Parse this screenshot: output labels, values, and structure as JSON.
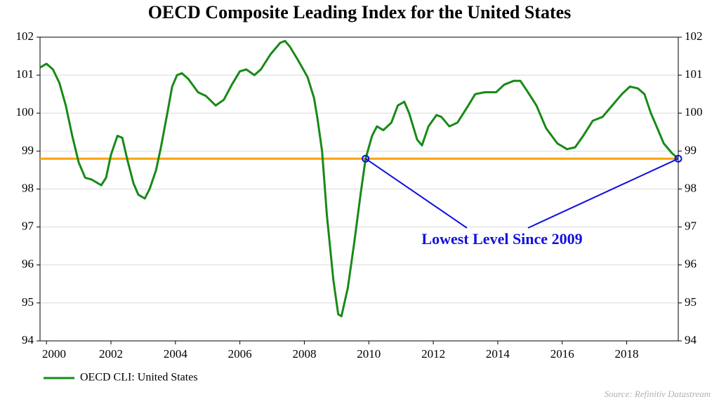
{
  "chart_data": {
    "type": "line",
    "title": "OECD Composite Leading Index for the United States",
    "x": [
      1999.8,
      2000.0,
      2000.2,
      2000.4,
      2000.6,
      2000.8,
      2001.0,
      2001.2,
      2001.4,
      2001.7,
      2001.85,
      2002.0,
      2002.2,
      2002.35,
      2002.5,
      2002.7,
      2002.85,
      2003.05,
      2003.2,
      2003.4,
      2003.55,
      2003.75,
      2003.9,
      2004.05,
      2004.2,
      2004.4,
      2004.7,
      2004.95,
      2005.25,
      2005.5,
      2005.75,
      2006.0,
      2006.2,
      2006.45,
      2006.65,
      2006.95,
      2007.25,
      2007.4,
      2007.55,
      2007.8,
      2008.1,
      2008.3,
      2008.4,
      2008.55,
      2008.7,
      2008.9,
      2009.05,
      2009.15,
      2009.35,
      2009.55,
      2009.75,
      2009.9,
      2010.1,
      2010.25,
      2010.45,
      2010.7,
      2010.9,
      2011.1,
      2011.25,
      2011.5,
      2011.65,
      2011.85,
      2012.1,
      2012.25,
      2012.5,
      2012.75,
      2013.05,
      2013.3,
      2013.6,
      2013.95,
      2014.2,
      2014.5,
      2014.7,
      2014.9,
      2015.2,
      2015.5,
      2015.85,
      2016.15,
      2016.4,
      2016.65,
      2016.95,
      2017.25,
      2017.5,
      2017.85,
      2018.1,
      2018.35,
      2018.55,
      2018.75,
      2018.95,
      2019.15,
      2019.4,
      2019.6
    ],
    "series": [
      {
        "name": "OECD CLI: United States",
        "color": "#178a17",
        "values": [
          101.2,
          101.3,
          101.15,
          100.8,
          100.2,
          99.4,
          98.7,
          98.3,
          98.25,
          98.1,
          98.3,
          98.9,
          99.4,
          99.35,
          98.8,
          98.15,
          97.85,
          97.75,
          98.0,
          98.5,
          99.1,
          100.0,
          100.7,
          101.0,
          101.05,
          100.9,
          100.55,
          100.45,
          100.2,
          100.35,
          100.75,
          101.1,
          101.15,
          101.0,
          101.15,
          101.55,
          101.85,
          101.9,
          101.75,
          101.4,
          100.95,
          100.4,
          99.9,
          99.0,
          97.3,
          95.6,
          94.7,
          94.65,
          95.4,
          96.6,
          97.9,
          98.8,
          99.4,
          99.65,
          99.55,
          99.75,
          100.2,
          100.3,
          100.0,
          99.3,
          99.15,
          99.65,
          99.95,
          99.9,
          99.65,
          99.75,
          100.15,
          100.5,
          100.55,
          100.55,
          100.75,
          100.85,
          100.85,
          100.6,
          100.2,
          99.6,
          99.2,
          99.05,
          99.1,
          99.4,
          99.8,
          99.9,
          100.15,
          100.5,
          100.7,
          100.65,
          100.5,
          100.0,
          99.6,
          99.2,
          98.95,
          98.8
        ]
      }
    ],
    "xlim": [
      1999.8,
      2019.6
    ],
    "xticks": [
      2000,
      2002,
      2004,
      2006,
      2008,
      2010,
      2012,
      2014,
      2016,
      2018
    ],
    "ylim": [
      94,
      102
    ],
    "yticks": [
      94,
      95,
      96,
      97,
      98,
      99,
      100,
      101,
      102
    ],
    "grid": true,
    "reference_line": 98.8,
    "reference_color": "#f5a300",
    "annotation": {
      "text": "Lowest Level Since 2009",
      "x": [
        2009.9,
        2019.6
      ],
      "color": "#1010e0"
    },
    "legend": "bottom-left",
    "source": "Source: Refinitiv Datastream"
  }
}
